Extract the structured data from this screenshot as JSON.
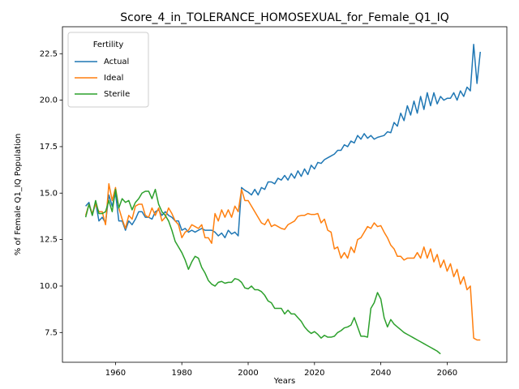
{
  "chart_data": {
    "type": "line",
    "title": "Score_4_in_TOLERANCE_HOMOSEXUAL_for_Female_Q1_IQ",
    "xlabel": "Years",
    "ylabel": "% of Female Q1_IQ Population",
    "legend_title": "Fertility",
    "legend": "upper left",
    "grid": false,
    "xlim": [
      1944,
      2078
    ],
    "ylim": [
      5.9,
      23.95
    ],
    "xticks": [
      1960,
      1980,
      2000,
      2020,
      2040,
      2060
    ],
    "yticks": [
      7.5,
      {
        "value": 10,
        "label": "10.0"
      },
      12.5,
      {
        "value": 15,
        "label": "15.0"
      },
      17.5,
      {
        "value": 20,
        "label": "20.0"
      },
      22.5
    ],
    "x": [
      1951,
      1952,
      1953,
      1954,
      1955,
      1956,
      1957,
      1958,
      1959,
      1960,
      1961,
      1962,
      1963,
      1964,
      1965,
      1966,
      1967,
      1968,
      1969,
      1970,
      1971,
      1972,
      1973,
      1974,
      1975,
      1976,
      1977,
      1978,
      1979,
      1980,
      1981,
      1982,
      1983,
      1984,
      1985,
      1986,
      1987,
      1988,
      1989,
      1990,
      1991,
      1992,
      1993,
      1994,
      1995,
      1996,
      1997,
      1998,
      1999,
      2000,
      2001,
      2002,
      2003,
      2004,
      2005,
      2006,
      2007,
      2008,
      2009,
      2010,
      2011,
      2012,
      2013,
      2014,
      2015,
      2016,
      2017,
      2018,
      2019,
      2020,
      2021,
      2022,
      2023,
      2024,
      2025,
      2026,
      2027,
      2028,
      2029,
      2030,
      2031,
      2032,
      2033,
      2034,
      2035,
      2036,
      2037,
      2038,
      2039,
      2040,
      2041,
      2042,
      2043,
      2044,
      2045,
      2046,
      2047,
      2048,
      2049,
      2050,
      2051,
      2052,
      2053,
      2054,
      2055,
      2056,
      2057,
      2058,
      2059,
      2060,
      2061,
      2062,
      2063,
      2064,
      2065,
      2066,
      2067,
      2068,
      2069,
      2070
    ],
    "series": [
      {
        "name": "Actual",
        "color": "#1f77b4",
        "values": [
          14.3,
          14.5,
          13.8,
          14.5,
          13.5,
          13.7,
          13.4,
          14.9,
          14.3,
          15.0,
          13.5,
          13.5,
          13.0,
          13.5,
          13.3,
          13.6,
          14.0,
          14.0,
          13.7,
          13.7,
          13.6,
          14.0,
          14.1,
          13.8,
          14.0,
          13.8,
          13.7,
          13.5,
          13.5,
          13.0,
          13.1,
          12.9,
          13.0,
          12.9,
          13.0,
          13.1,
          13.0,
          13.0,
          13.0,
          12.9,
          12.7,
          12.85,
          12.6,
          13.0,
          12.8,
          12.9,
          12.7,
          15.3,
          15.15,
          15.05,
          14.9,
          15.2,
          14.9,
          15.3,
          15.2,
          15.6,
          15.6,
          15.5,
          15.8,
          15.7,
          15.95,
          15.7,
          16.05,
          15.8,
          16.2,
          15.9,
          16.3,
          16.0,
          16.5,
          16.3,
          16.65,
          16.6,
          16.8,
          16.9,
          17.0,
          17.1,
          17.3,
          17.3,
          17.6,
          17.5,
          17.8,
          17.7,
          18.1,
          17.9,
          18.2,
          17.95,
          18.1,
          17.9,
          18.0,
          18.05,
          18.1,
          18.3,
          18.25,
          18.8,
          18.6,
          19.3,
          18.9,
          19.7,
          19.2,
          19.95,
          19.3,
          20.2,
          19.5,
          20.4,
          19.7,
          20.4,
          19.8,
          20.2,
          20.0,
          20.1,
          20.1,
          20.4,
          20.0,
          20.5,
          20.2,
          20.7,
          20.5,
          23.0,
          20.9,
          22.6
        ]
      },
      {
        "name": "Ideal",
        "color": "#ff7f0e",
        "values": [
          13.8,
          14.4,
          13.9,
          14.4,
          14.0,
          14.0,
          13.3,
          15.5,
          14.6,
          15.3,
          14.2,
          13.6,
          13.1,
          13.8,
          13.6,
          14.3,
          14.4,
          14.4,
          13.8,
          13.7,
          14.2,
          13.8,
          14.2,
          13.5,
          13.7,
          14.2,
          13.9,
          13.5,
          13.3,
          12.6,
          12.9,
          13.0,
          13.3,
          13.2,
          13.1,
          13.3,
          12.6,
          12.6,
          12.3,
          13.9,
          13.5,
          14.1,
          13.7,
          14.1,
          13.7,
          14.3,
          14.0,
          15.2,
          14.6,
          14.6,
          14.3,
          14.0,
          13.7,
          13.4,
          13.3,
          13.6,
          13.2,
          13.3,
          13.2,
          13.1,
          13.05,
          13.3,
          13.4,
          13.5,
          13.75,
          13.8,
          13.8,
          13.9,
          13.85,
          13.85,
          13.9,
          13.4,
          13.6,
          13.0,
          12.9,
          12.0,
          12.1,
          11.5,
          11.8,
          11.5,
          12.1,
          11.8,
          12.5,
          12.6,
          12.9,
          13.2,
          13.1,
          13.4,
          13.2,
          13.25,
          12.9,
          12.6,
          12.2,
          12.0,
          11.6,
          11.6,
          11.4,
          11.5,
          11.5,
          11.5,
          11.8,
          11.5,
          12.1,
          11.5,
          12.0,
          11.3,
          11.7,
          11.0,
          11.4,
          10.8,
          11.2,
          10.5,
          10.9,
          10.1,
          10.5,
          9.8,
          10.0,
          7.2,
          7.1,
          7.1
        ]
      },
      {
        "name": "Sterile",
        "color": "#2ca02c",
        "values": [
          13.7,
          14.4,
          13.8,
          14.6,
          13.9,
          13.9,
          14.0,
          14.6,
          14.0,
          15.2,
          14.2,
          14.7,
          14.5,
          14.6,
          14.1,
          14.5,
          14.7,
          15.0,
          15.1,
          15.1,
          14.7,
          15.2,
          14.4,
          14.0,
          13.8,
          13.5,
          13.0,
          12.4,
          12.1,
          11.8,
          11.4,
          10.9,
          11.3,
          11.6,
          11.5,
          11.0,
          10.7,
          10.3,
          10.1,
          10.0,
          10.2,
          10.25,
          10.15,
          10.2,
          10.2,
          10.4,
          10.35,
          10.2,
          9.9,
          9.85,
          10.0,
          9.8,
          9.8,
          9.7,
          9.5,
          9.2,
          9.1,
          8.8,
          8.8,
          8.8,
          8.5,
          8.7,
          8.5,
          8.5,
          8.3,
          8.1,
          7.8,
          7.6,
          7.45,
          7.55,
          7.4,
          7.2,
          7.35,
          7.25,
          7.25,
          7.3,
          7.5,
          7.6,
          7.75,
          7.8,
          7.9,
          8.3,
          7.8,
          7.3,
          7.3,
          7.25,
          8.8,
          9.1,
          9.65,
          9.3,
          8.3,
          7.8,
          8.2,
          7.95,
          7.8,
          7.65,
          7.5,
          7.4,
          7.3,
          7.2,
          7.1,
          7.0,
          6.9,
          6.8,
          6.7,
          6.6,
          6.5,
          6.35,
          null,
          null,
          null,
          null,
          null,
          null,
          null,
          null,
          null,
          null,
          null,
          null
        ]
      }
    ]
  }
}
